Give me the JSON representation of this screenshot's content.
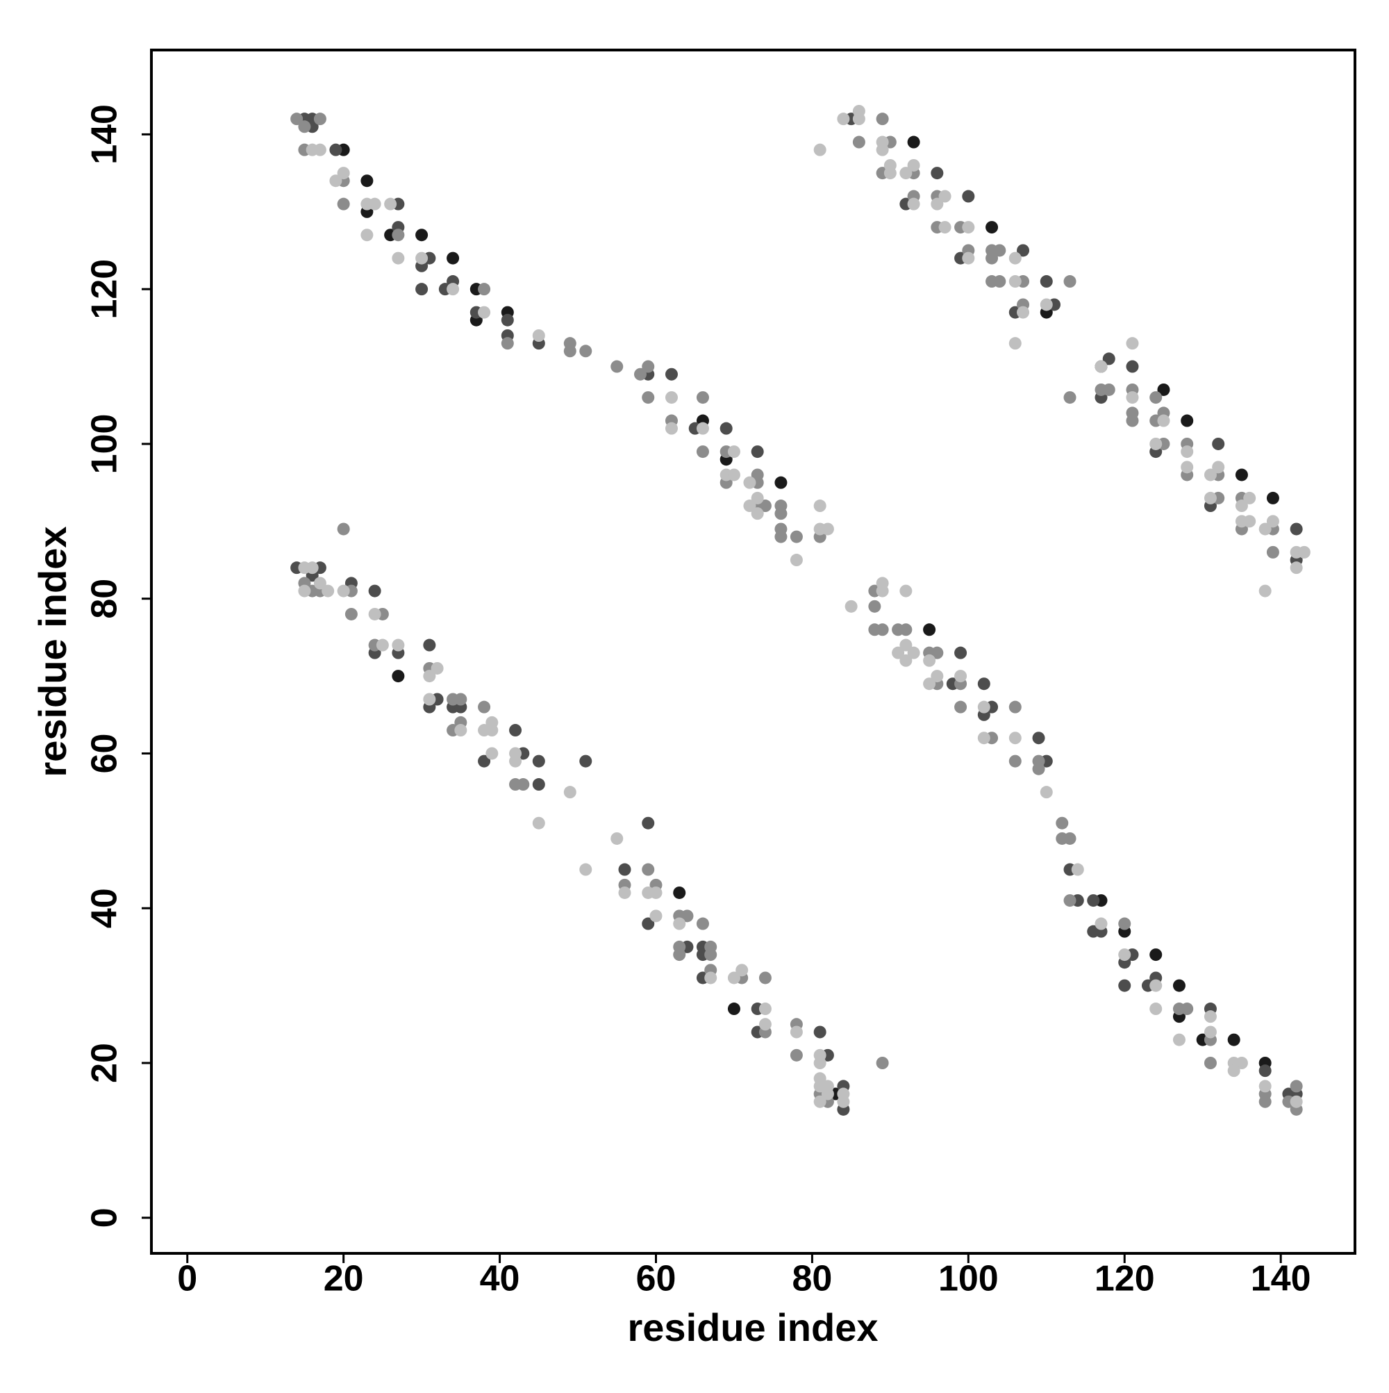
{
  "chart_data": {
    "type": "scatter",
    "x_label": "residue index",
    "y_label": "residue index",
    "xlim": [
      -4.6,
      149.5
    ],
    "ylim": [
      -4.6,
      150.9
    ],
    "xticks": [
      0,
      20,
      40,
      60,
      80,
      100,
      120,
      140
    ],
    "yticks": [
      0,
      20,
      40,
      60,
      80,
      100,
      120,
      140
    ],
    "grid": false,
    "series": [
      {
        "color": "#1a1a1a",
        "x": [
          20,
          23,
          23,
          26,
          30,
          34,
          37,
          37,
          41,
          66,
          69,
          76,
          27,
          63,
          70,
          83,
          93,
          103,
          110,
          117,
          125,
          128,
          135,
          139,
          95,
          117,
          120,
          124,
          127,
          127,
          130,
          134,
          138
        ],
        "y": [
          138,
          134,
          130,
          127,
          127,
          124,
          120,
          116,
          117,
          103,
          98,
          95,
          70,
          42,
          27,
          16,
          139,
          128,
          117,
          110,
          107,
          103,
          96,
          93,
          76,
          41,
          37,
          34,
          30,
          26,
          23,
          23,
          20
        ]
      },
      {
        "color": "#4d4d4d",
        "x": [
          15,
          16,
          16,
          19,
          27,
          27,
          30,
          31,
          30,
          33,
          34,
          37,
          41,
          41,
          45,
          59,
          62,
          65,
          69,
          73,
          14,
          17,
          16,
          21,
          24,
          24,
          27,
          31,
          32,
          31,
          34,
          35,
          38,
          42,
          43,
          45,
          45,
          51,
          56,
          59,
          59,
          64,
          66,
          66,
          66,
          73,
          73,
          81,
          82,
          84,
          84,
          85,
          92,
          96,
          100,
          99,
          107,
          106,
          110,
          111,
          118,
          117,
          121,
          124,
          132,
          131,
          142,
          142,
          98,
          99,
          102,
          103,
          102,
          109,
          110,
          113,
          114,
          116,
          116,
          117,
          121,
          120,
          120,
          123,
          124,
          131,
          138,
          141,
          142
        ],
        "y": [
          142,
          142,
          141,
          138,
          131,
          128,
          123,
          124,
          120,
          120,
          121,
          117,
          116,
          114,
          113,
          109,
          109,
          102,
          102,
          99,
          84,
          84,
          83,
          82,
          81,
          73,
          73,
          74,
          67,
          66,
          66,
          66,
          59,
          63,
          60,
          59,
          56,
          59,
          45,
          51,
          38,
          35,
          35,
          34,
          31,
          27,
          24,
          24,
          21,
          17,
          14,
          142,
          131,
          135,
          132,
          124,
          125,
          117,
          121,
          118,
          111,
          106,
          110,
          99,
          100,
          92,
          89,
          85,
          69,
          73,
          69,
          66,
          65,
          62,
          59,
          45,
          41,
          41,
          37,
          37,
          34,
          33,
          30,
          30,
          31,
          27,
          19,
          16,
          16
        ]
      },
      {
        "color": "#8c8c8c",
        "x": [
          14,
          17,
          15,
          15,
          20,
          20,
          27,
          38,
          41,
          49,
          49,
          51,
          55,
          58,
          59,
          59,
          62,
          66,
          66,
          69,
          69,
          73,
          73,
          73,
          74,
          76,
          76,
          76,
          76,
          78,
          81,
          15,
          16,
          17,
          20,
          21,
          21,
          24,
          25,
          31,
          34,
          35,
          35,
          34,
          38,
          42,
          43,
          56,
          59,
          60,
          63,
          64,
          63,
          63,
          66,
          67,
          67,
          67,
          71,
          74,
          74,
          78,
          78,
          81,
          82,
          89,
          86,
          89,
          90,
          89,
          93,
          93,
          96,
          96,
          99,
          100,
          103,
          104,
          103,
          103,
          104,
          107,
          107,
          113,
          113,
          117,
          118,
          121,
          121,
          121,
          124,
          124,
          125,
          125,
          128,
          128,
          132,
          132,
          135,
          135,
          139,
          139,
          88,
          88,
          88,
          89,
          91,
          92,
          95,
          96,
          96,
          99,
          99,
          103,
          106,
          106,
          109,
          109,
          112,
          112,
          113,
          113,
          120,
          127,
          128,
          131,
          131,
          138,
          138,
          142,
          141,
          142
        ],
        "y": [
          142,
          142,
          141,
          138,
          134,
          131,
          127,
          120,
          113,
          113,
          112,
          112,
          110,
          109,
          110,
          106,
          103,
          106,
          99,
          99,
          95,
          96,
          95,
          92,
          92,
          92,
          91,
          89,
          88,
          88,
          88,
          82,
          81,
          81,
          89,
          81,
          78,
          74,
          78,
          71,
          67,
          67,
          64,
          63,
          66,
          56,
          56,
          43,
          45,
          43,
          39,
          39,
          35,
          34,
          38,
          35,
          34,
          32,
          31,
          31,
          24,
          25,
          21,
          16,
          15,
          20,
          139,
          142,
          139,
          135,
          135,
          132,
          132,
          128,
          128,
          125,
          125,
          125,
          124,
          121,
          121,
          121,
          118,
          121,
          106,
          107,
          107,
          107,
          104,
          103,
          106,
          103,
          104,
          100,
          100,
          96,
          96,
          93,
          93,
          89,
          89,
          86,
          81,
          79,
          76,
          76,
          76,
          76,
          73,
          73,
          69,
          69,
          66,
          62,
          66,
          59,
          59,
          58,
          51,
          49,
          49,
          41,
          38,
          27,
          27,
          23,
          20,
          16,
          15,
          17,
          15,
          14
        ]
      },
      {
        "color": "#bfbfbf",
        "x": [
          16,
          17,
          19,
          20,
          23,
          24,
          23,
          26,
          27,
          30,
          34,
          38,
          45,
          62,
          62,
          66,
          70,
          69,
          70,
          72,
          73,
          72,
          73,
          78,
          81,
          81,
          82,
          15,
          16,
          17,
          15,
          18,
          20,
          24,
          25,
          27,
          32,
          31,
          31,
          35,
          38,
          39,
          39,
          39,
          42,
          42,
          45,
          49,
          51,
          55,
          56,
          59,
          60,
          60,
          63,
          67,
          70,
          71,
          74,
          74,
          78,
          81,
          81,
          81,
          81,
          82,
          82,
          84,
          81,
          84,
          81,
          84,
          86,
          86,
          89,
          89,
          90,
          90,
          92,
          93,
          93,
          97,
          96,
          97,
          100,
          100,
          106,
          106,
          107,
          106,
          110,
          117,
          121,
          121,
          125,
          124,
          128,
          128,
          131,
          132,
          131,
          136,
          135,
          135,
          136,
          138,
          139,
          138,
          142,
          142,
          143,
          85,
          89,
          89,
          92,
          91,
          92,
          93,
          92,
          95,
          96,
          95,
          99,
          102,
          102,
          106,
          110,
          114,
          117,
          120,
          124,
          124,
          127,
          131,
          131,
          134,
          135,
          134,
          138,
          142
        ],
        "y": [
          138,
          138,
          134,
          135,
          131,
          131,
          127,
          131,
          124,
          124,
          120,
          117,
          114,
          106,
          102,
          102,
          99,
          96,
          96,
          95,
          93,
          92,
          91,
          85,
          92,
          89,
          89,
          84,
          84,
          82,
          81,
          81,
          81,
          78,
          74,
          74,
          71,
          70,
          67,
          63,
          63,
          64,
          63,
          60,
          60,
          59,
          51,
          55,
          45,
          49,
          42,
          42,
          42,
          39,
          38,
          31,
          31,
          32,
          27,
          25,
          24,
          21,
          20,
          18,
          17,
          17,
          16,
          16,
          15,
          15,
          138,
          142,
          142,
          143,
          139,
          138,
          136,
          135,
          135,
          136,
          131,
          132,
          131,
          128,
          128,
          124,
          124,
          121,
          117,
          113,
          118,
          110,
          113,
          106,
          103,
          100,
          99,
          97,
          96,
          97,
          93,
          93,
          92,
          90,
          90,
          89,
          90,
          81,
          86,
          84,
          86,
          79,
          82,
          81,
          81,
          73,
          74,
          73,
          72,
          72,
          70,
          69,
          70,
          66,
          62,
          62,
          55,
          45,
          38,
          34,
          30,
          27,
          23,
          26,
          24,
          20,
          20,
          19,
          17,
          15
        ]
      }
    ]
  }
}
